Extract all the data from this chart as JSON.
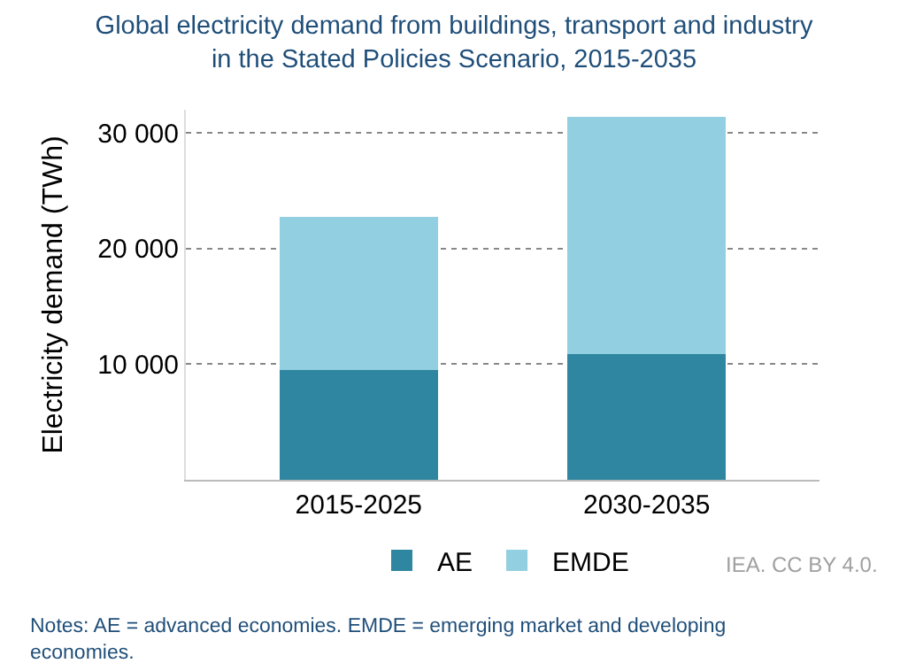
{
  "chart_data": {
    "type": "bar",
    "title": "Global electricity demand from buildings, transport and industry\nin the Stated Policies Scenario, 2015-2035",
    "ylabel": "Electricity demand (TWh)",
    "categories": [
      "2015-2025",
      "2030-2035"
    ],
    "stacked": true,
    "series": [
      {
        "name": "AE",
        "color": "#2e86a0",
        "values": [
          9500,
          10900
        ]
      },
      {
        "name": "EMDE",
        "color": "#92cfe0",
        "values": [
          13200,
          20500
        ]
      }
    ],
    "ylim": [
      0,
      32000
    ],
    "yticks": [
      {
        "value": 10000,
        "label": "10 000"
      },
      {
        "value": 20000,
        "label": "20 000"
      },
      {
        "value": 30000,
        "label": "30 000"
      }
    ],
    "grid": "y",
    "legend": "bottom",
    "annotations": [
      "IEA. CC BY 4.0.",
      "Notes: AE = advanced economies. EMDE = emerging market and developing\neconomies."
    ]
  }
}
